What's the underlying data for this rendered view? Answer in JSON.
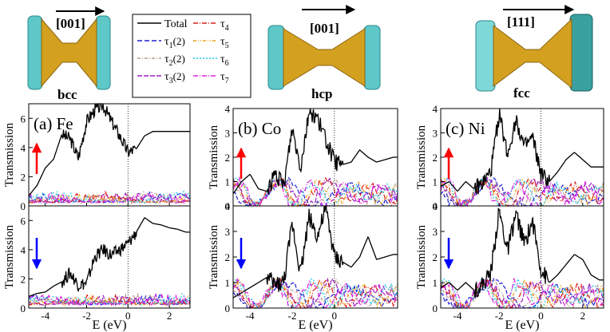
{
  "colors": {
    "total": "#000000",
    "t1": "#1f1fd6",
    "t2": "#b89a8c",
    "t3": "#9a1fc0",
    "t4": "#d91c1c",
    "t5": "#e8a317",
    "t6": "#1fc8e8",
    "t7": "#e01fe0",
    "spin_up": "#ff0000",
    "spin_down": "#0000ff",
    "atom_lead": "#5ec8c8",
    "atom_wire": "#d4a020"
  },
  "structures": [
    {
      "direction": "[001]",
      "lattice": "bcc"
    },
    {
      "direction": "[001]",
      "lattice": "hcp"
    },
    {
      "direction": "[111]",
      "lattice": "fcc"
    }
  ],
  "legend": {
    "entries": [
      {
        "key": "total",
        "label": "Total"
      },
      {
        "key": "t1",
        "label": "τ",
        "sub": "1",
        "mult": "(2)"
      },
      {
        "key": "t2",
        "label": "τ",
        "sub": "2",
        "mult": "(2)"
      },
      {
        "key": "t3",
        "label": "τ",
        "sub": "3",
        "mult": "(2)"
      },
      {
        "key": "t4",
        "label": "τ",
        "sub": "4",
        "mult": ""
      },
      {
        "key": "t5",
        "label": "τ",
        "sub": "5",
        "mult": ""
      },
      {
        "key": "t6",
        "label": "τ",
        "sub": "6",
        "mult": ""
      },
      {
        "key": "t7",
        "label": "τ",
        "sub": "7",
        "mult": ""
      }
    ]
  },
  "chart_data": [
    {
      "type": "line",
      "panel": "(a) Fe",
      "xlabel": "E (eV)",
      "ylabel": "Transmission",
      "xlim": [
        -4.8,
        3
      ],
      "ylim_up": [
        0,
        7
      ],
      "ylim_down": [
        0,
        7
      ],
      "yticks": [
        0,
        2,
        4,
        6
      ],
      "xticks": [
        -4,
        -2,
        0,
        2
      ],
      "spin_up": {
        "x": [
          -4.8,
          -4.4,
          -4.0,
          -3.6,
          -3.2,
          -2.8,
          -2.4,
          -2.0,
          -1.6,
          -1.2,
          -0.8,
          -0.4,
          0.0,
          0.4,
          0.8,
          1.2,
          1.6,
          2.0,
          2.4,
          2.8
        ],
        "y": [
          0.7,
          1.4,
          2.6,
          3.2,
          4.9,
          4.6,
          3.3,
          5.8,
          6.6,
          6.9,
          5.8,
          4.8,
          3.7,
          3.9,
          4.8,
          5.1,
          5.1,
          5.1,
          5.1,
          5.1
        ]
      },
      "spin_down": {
        "x": [
          -4.8,
          -4.4,
          -4.0,
          -3.6,
          -3.2,
          -2.8,
          -2.4,
          -2.0,
          -1.6,
          -1.2,
          -0.8,
          -0.4,
          0.0,
          0.4,
          0.8,
          1.2,
          1.6,
          2.0,
          2.4,
          2.8
        ],
        "y": [
          0.8,
          1.0,
          1.1,
          1.5,
          1.8,
          2.4,
          1.6,
          1.7,
          3.5,
          4.0,
          3.6,
          4.0,
          4.4,
          5.2,
          6.2,
          5.8,
          5.7,
          5.5,
          5.4,
          5.2
        ]
      }
    },
    {
      "type": "line",
      "panel": "(b) Co",
      "xlabel": "E (eV)",
      "ylabel": "Transmission",
      "xlim": [
        -4.8,
        3
      ],
      "ylim_up": [
        0,
        4
      ],
      "ylim_down": [
        0,
        4
      ],
      "yticks": [
        0,
        1,
        2,
        3,
        4
      ],
      "xticks": [
        -4,
        -2,
        0
      ],
      "spin_up": {
        "x": [
          -4.8,
          -4.4,
          -4.0,
          -3.6,
          -3.2,
          -2.8,
          -2.4,
          -2.0,
          -1.6,
          -1.2,
          -0.8,
          -0.4,
          0.0,
          0.4,
          0.8,
          1.2,
          1.6,
          2.0,
          2.4,
          2.8
        ],
        "y": [
          0.5,
          1.0,
          1.3,
          0.7,
          0.6,
          1.3,
          0.8,
          3.2,
          1.6,
          3.9,
          3.6,
          2.7,
          1.8,
          1.7,
          1.8,
          2.3,
          2.0,
          1.8,
          1.9,
          2.0
        ]
      },
      "spin_down": {
        "x": [
          -4.8,
          -4.4,
          -4.0,
          -3.6,
          -3.2,
          -2.8,
          -2.4,
          -2.0,
          -1.6,
          -1.2,
          -0.8,
          -0.4,
          0.0,
          0.4,
          0.8,
          1.2,
          1.6,
          2.0,
          2.4,
          2.8
        ],
        "y": [
          0.4,
          0.6,
          0.8,
          1.0,
          1.2,
          0.9,
          1.0,
          3.3,
          1.4,
          3.6,
          2.8,
          3.9,
          2.0,
          1.8,
          1.6,
          2.0,
          2.8,
          1.9,
          2.0,
          2.1
        ]
      }
    },
    {
      "type": "line",
      "panel": "(c) Ni",
      "xlabel": "E (eV)",
      "ylabel": "Transmission",
      "xlim": [
        -4.8,
        3
      ],
      "ylim_up": [
        0,
        4
      ],
      "ylim_down": [
        0,
        4
      ],
      "yticks": [
        0,
        1,
        2,
        3,
        4
      ],
      "xticks": [
        -4,
        -2,
        0,
        2
      ],
      "spin_up": {
        "x": [
          -4.8,
          -4.4,
          -4.0,
          -3.6,
          -3.2,
          -2.8,
          -2.4,
          -2.0,
          -1.6,
          -1.2,
          -0.8,
          -0.4,
          0.0,
          0.4,
          0.8,
          1.2,
          1.6,
          2.0,
          2.4,
          2.8
        ],
        "y": [
          0.8,
          1.0,
          0.6,
          1.0,
          0.7,
          0.9,
          1.4,
          3.8,
          2.1,
          3.6,
          2.4,
          2.8,
          1.3,
          1.0,
          1.4,
          1.9,
          2.2,
          1.9,
          1.6,
          1.6
        ]
      },
      "spin_down": {
        "x": [
          -4.8,
          -4.4,
          -4.0,
          -3.6,
          -3.2,
          -2.8,
          -2.4,
          -2.0,
          -1.6,
          -1.2,
          -0.8,
          -0.4,
          0.0,
          0.4,
          0.8,
          1.2,
          1.6,
          2.0,
          2.4,
          2.8
        ],
        "y": [
          0.8,
          1.0,
          0.7,
          1.0,
          0.7,
          0.9,
          1.4,
          3.8,
          2.2,
          3.7,
          2.5,
          3.4,
          1.5,
          1.0,
          1.3,
          1.7,
          2.1,
          1.9,
          1.3,
          1.1
        ]
      }
    }
  ]
}
